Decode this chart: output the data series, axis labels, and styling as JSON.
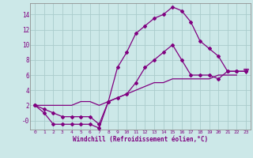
{
  "xlabel": "Windchill (Refroidissement éolien,°C)",
  "background_color": "#cce8e8",
  "grid_color": "#aacccc",
  "line_color": "#800080",
  "x_hours": [
    0,
    1,
    2,
    3,
    4,
    5,
    6,
    7,
    8,
    9,
    10,
    11,
    12,
    13,
    14,
    15,
    16,
    17,
    18,
    19,
    20,
    21,
    22,
    23
  ],
  "curve_high": [
    2,
    1.5,
    1,
    0.5,
    0.5,
    0.5,
    0.5,
    -0.5,
    2.5,
    7,
    9,
    11.5,
    12.5,
    13.5,
    14,
    15,
    14.5,
    13,
    10.5,
    9.5,
    8.5,
    6.5,
    6.5,
    6.5
  ],
  "curve_mid": [
    2,
    1,
    -0.5,
    -0.5,
    -0.5,
    -0.5,
    -0.5,
    -1,
    2.5,
    3,
    3.5,
    5,
    7,
    8,
    9,
    10,
    8,
    6,
    6,
    6,
    5.5,
    6.5,
    6.5,
    6.5
  ],
  "curve_low": [
    2,
    2,
    2,
    2,
    2,
    2.5,
    2.5,
    2,
    2.5,
    3,
    3.5,
    4,
    4.5,
    5,
    5,
    5.5,
    5.5,
    5.5,
    5.5,
    5.5,
    6,
    6,
    6,
    6.5
  ],
  "ylim": [
    -1.2,
    15.5
  ],
  "xlim": [
    -0.5,
    23.5
  ],
  "yticks": [
    0,
    2,
    4,
    6,
    8,
    10,
    12,
    14
  ],
  "ytick_labels": [
    "-0",
    "2",
    "4",
    "6",
    "8",
    "10",
    "12",
    "14"
  ],
  "xticks": [
    0,
    1,
    2,
    3,
    4,
    5,
    6,
    7,
    8,
    9,
    10,
    11,
    12,
    13,
    14,
    15,
    16,
    17,
    18,
    19,
    20,
    21,
    22,
    23
  ]
}
